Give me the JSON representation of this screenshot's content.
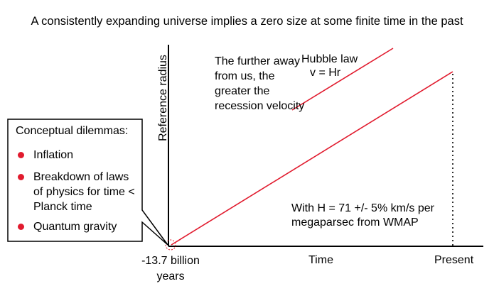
{
  "title": "A consistently expanding universe implies a zero size at some finite time in the past",
  "y_axis_label": "Reference radius",
  "x_axis_label": "Time",
  "origin_label": "-13.7 billion years",
  "present_label": "Present",
  "annotation_further": "The further away from us, the greater the recession velocity",
  "hubble_law": {
    "title": "Hubble law",
    "equation": "v = Hr"
  },
  "wmap_note": "With H = 71 +/- 5%  km/s per megaparsec from WMAP",
  "dilemmas": {
    "title": "Conceptual dilemmas:",
    "items": [
      "Inflation",
      "Breakdown of laws of physics for time < Planck time",
      "Quantum gravity"
    ]
  },
  "colors": {
    "line": "#e11b2e",
    "axis": "#000000",
    "bullet": "#e11b2e"
  }
}
